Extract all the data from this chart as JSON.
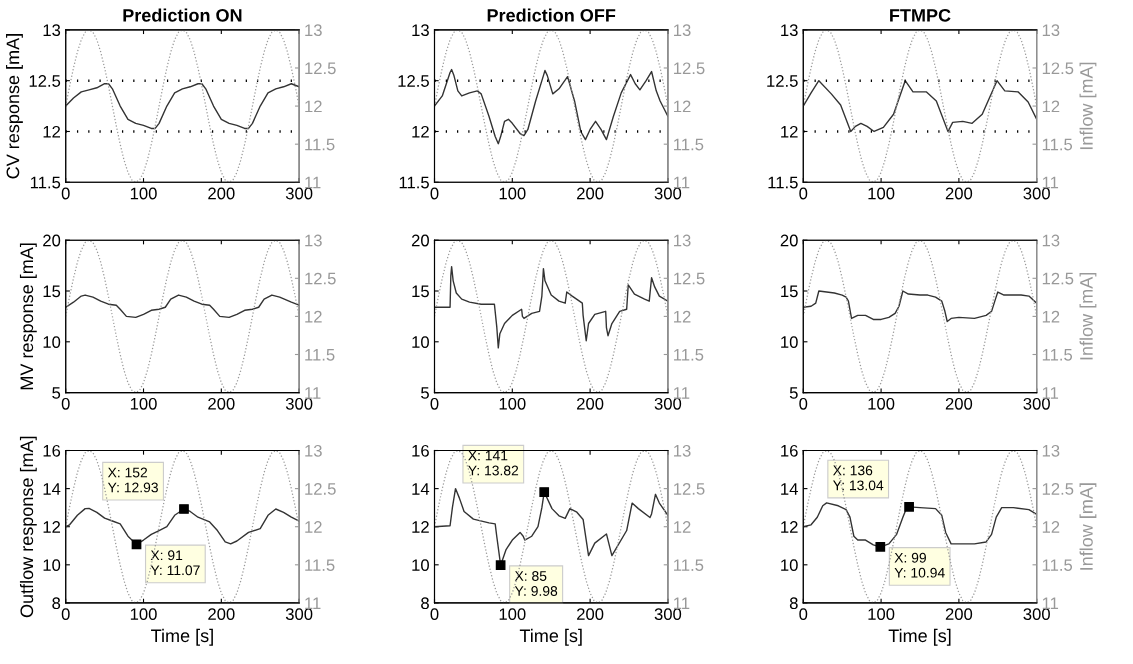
{
  "chart_data": [
    {
      "type": "line",
      "title": "Prediction ON",
      "ylabel": "CV response [mA]",
      "xlim": [
        0,
        300
      ],
      "xticks": [
        0,
        100,
        200,
        300
      ],
      "ylim": [
        11.5,
        13
      ],
      "yticks": [
        11.5,
        12,
        12.5,
        13
      ],
      "y2lim": [
        11,
        13
      ],
      "y2ticks": [
        11,
        11.5,
        12,
        12.5,
        13
      ],
      "grid": false,
      "legend": false,
      "x": [
        0,
        5,
        10,
        15,
        20,
        25,
        30,
        35,
        40,
        45,
        50,
        55,
        60,
        65,
        70,
        75,
        80,
        85,
        90,
        95,
        100,
        105,
        110,
        115,
        120,
        125,
        130,
        135,
        140,
        145,
        150,
        155,
        160,
        165,
        170,
        175,
        180,
        185,
        190,
        195,
        200,
        205,
        210,
        215,
        220,
        225,
        230,
        235,
        240,
        245,
        250,
        255,
        260,
        265,
        270,
        275,
        280,
        285,
        290,
        295,
        300
      ],
      "ref_lines": [
        {
          "axis": "y",
          "value": 12,
          "color": "#000000",
          "line_style": "dotted"
        },
        {
          "axis": "y",
          "value": 12.5,
          "color": "#000000",
          "line_style": "dotted"
        }
      ],
      "series": [
        {
          "color": "#999999",
          "axis": "y2",
          "line_style": "dotted",
          "values": [
            12,
            12.26,
            12.5,
            12.71,
            12.87,
            12.97,
            13,
            12.97,
            12.87,
            12.71,
            12.5,
            12.26,
            12,
            11.74,
            11.5,
            11.29,
            11.13,
            11.03,
            11,
            11.03,
            11.13,
            11.29,
            11.5,
            11.74,
            12,
            12.26,
            12.5,
            12.71,
            12.87,
            12.97,
            13,
            12.97,
            12.87,
            12.71,
            12.5,
            12.26,
            12,
            11.74,
            11.5,
            11.29,
            11.13,
            11.03,
            11,
            11.03,
            11.13,
            11.29,
            11.5,
            11.74,
            12,
            12.26,
            12.5,
            12.71,
            12.87,
            12.97,
            13,
            12.97,
            12.87,
            12.71,
            12.5,
            12.26,
            12
          ]
        },
        {
          "color": "#333333",
          "line_style": "solid",
          "x": [
            0,
            10,
            20,
            30,
            40,
            50,
            55,
            60,
            70,
            80,
            90,
            100,
            110,
            115,
            120,
            130,
            140,
            150,
            160,
            170,
            175,
            180,
            190,
            200,
            210,
            220,
            230,
            235,
            240,
            250,
            260,
            270,
            280,
            290,
            300
          ],
          "values": [
            12.25,
            12.33,
            12.39,
            12.41,
            12.43,
            12.47,
            12.47,
            12.42,
            12.25,
            12.12,
            12.08,
            12.06,
            12.03,
            12.03,
            12.08,
            12.25,
            12.38,
            12.42,
            12.44,
            12.47,
            12.47,
            12.42,
            12.25,
            12.12,
            12.08,
            12.06,
            12.03,
            12.03,
            12.08,
            12.25,
            12.38,
            12.42,
            12.44,
            12.47,
            12.44
          ]
        }
      ]
    },
    {
      "type": "line",
      "title": "Prediction OFF",
      "xlim": [
        0,
        300
      ],
      "xticks": [
        0,
        100,
        200,
        300
      ],
      "ylim": [
        11.5,
        13
      ],
      "yticks": [
        11.5,
        12,
        12.5,
        13
      ],
      "y2lim": [
        11,
        13
      ],
      "y2ticks": [
        11,
        11.5,
        12,
        12.5,
        13
      ],
      "grid": false,
      "legend": false,
      "x": [
        0,
        5,
        10,
        15,
        20,
        25,
        30,
        35,
        40,
        45,
        50,
        55,
        60,
        65,
        70,
        75,
        80,
        85,
        90,
        95,
        100,
        105,
        110,
        115,
        120,
        125,
        130,
        135,
        140,
        145,
        150,
        155,
        160,
        165,
        170,
        175,
        180,
        185,
        190,
        195,
        200,
        205,
        210,
        215,
        220,
        225,
        230,
        235,
        240,
        245,
        250,
        255,
        260,
        265,
        270,
        275,
        280,
        285,
        290,
        295,
        300
      ],
      "ref_lines": [
        {
          "axis": "y",
          "value": 12,
          "color": "#000000",
          "line_style": "dotted"
        },
        {
          "axis": "y",
          "value": 12.5,
          "color": "#000000",
          "line_style": "dotted"
        }
      ],
      "series": [
        {
          "color": "#999999",
          "axis": "y2",
          "line_style": "dotted",
          "values": [
            12,
            12.26,
            12.5,
            12.71,
            12.87,
            12.97,
            13,
            12.97,
            12.87,
            12.71,
            12.5,
            12.26,
            12,
            11.74,
            11.5,
            11.29,
            11.13,
            11.03,
            11,
            11.03,
            11.13,
            11.29,
            11.5,
            11.74,
            12,
            12.26,
            12.5,
            12.71,
            12.87,
            12.97,
            13,
            12.97,
            12.87,
            12.71,
            12.5,
            12.26,
            12,
            11.74,
            11.5,
            11.29,
            11.13,
            11.03,
            11,
            11.03,
            11.13,
            11.29,
            11.5,
            11.74,
            12,
            12.26,
            12.5,
            12.71,
            12.87,
            12.97,
            13,
            12.97,
            12.87,
            12.71,
            12.5,
            12.26,
            12
          ]
        },
        {
          "color": "#333333",
          "line_style": "solid",
          "x": [
            0,
            10,
            20,
            22,
            25,
            30,
            35,
            45,
            55,
            60,
            70,
            78,
            82,
            85,
            90,
            95,
            100,
            110,
            115,
            120,
            130,
            140,
            142,
            145,
            152,
            160,
            171,
            180,
            188,
            194,
            200,
            207,
            214,
            221,
            230,
            240,
            252,
            258,
            264,
            272,
            279,
            285,
            290,
            300
          ],
          "values": [
            12.25,
            12.35,
            12.58,
            12.61,
            12.55,
            12.4,
            12.35,
            12.38,
            12.4,
            12.37,
            12.15,
            11.95,
            11.88,
            11.95,
            12.1,
            12.12,
            12.08,
            11.98,
            11.96,
            12.02,
            12.3,
            12.55,
            12.6,
            12.55,
            12.37,
            12.42,
            12.54,
            12.3,
            12.0,
            11.92,
            12.02,
            12.1,
            12.02,
            11.92,
            12.15,
            12.38,
            12.56,
            12.47,
            12.41,
            12.5,
            12.59,
            12.4,
            12.3,
            12.15
          ]
        }
      ]
    },
    {
      "type": "line",
      "title": "FTMPC",
      "y2label": "Inflow [mA]",
      "xlim": [
        0,
        300
      ],
      "xticks": [
        0,
        100,
        200,
        300
      ],
      "ylim": [
        11.5,
        13
      ],
      "yticks": [
        11.5,
        12,
        12.5,
        13
      ],
      "y2lim": [
        11,
        13
      ],
      "y2ticks": [
        11,
        11.5,
        12,
        12.5,
        13
      ],
      "grid": false,
      "legend": false,
      "x": [
        0,
        5,
        10,
        15,
        20,
        25,
        30,
        35,
        40,
        45,
        50,
        55,
        60,
        65,
        70,
        75,
        80,
        85,
        90,
        95,
        100,
        105,
        110,
        115,
        120,
        125,
        130,
        135,
        140,
        145,
        150,
        155,
        160,
        165,
        170,
        175,
        180,
        185,
        190,
        195,
        200,
        205,
        210,
        215,
        220,
        225,
        230,
        235,
        240,
        245,
        250,
        255,
        260,
        265,
        270,
        275,
        280,
        285,
        290,
        295,
        300
      ],
      "ref_lines": [
        {
          "axis": "y",
          "value": 12,
          "color": "#000000",
          "line_style": "dotted"
        },
        {
          "axis": "y",
          "value": 12.5,
          "color": "#000000",
          "line_style": "dotted"
        }
      ],
      "series": [
        {
          "color": "#999999",
          "axis": "y2",
          "line_style": "dotted",
          "values": [
            12,
            12.26,
            12.5,
            12.71,
            12.87,
            12.97,
            13,
            12.97,
            12.87,
            12.71,
            12.5,
            12.26,
            12,
            11.74,
            11.5,
            11.29,
            11.13,
            11.03,
            11,
            11.03,
            11.13,
            11.29,
            11.5,
            11.74,
            12,
            12.26,
            12.5,
            12.71,
            12.87,
            12.97,
            13,
            12.97,
            12.87,
            12.71,
            12.5,
            12.26,
            12,
            11.74,
            11.5,
            11.29,
            11.13,
            11.03,
            11,
            11.03,
            11.13,
            11.29,
            11.5,
            11.74,
            12,
            12.26,
            12.5,
            12.71,
            12.87,
            12.97,
            13,
            12.97,
            12.87,
            12.71,
            12.5,
            12.26,
            12
          ]
        },
        {
          "color": "#333333",
          "line_style": "solid",
          "x": [
            0,
            10,
            20,
            36,
            48,
            61,
            67,
            74,
            82,
            91,
            103,
            116,
            131,
            141,
            158,
            171,
            186,
            192,
            205,
            217,
            230,
            249,
            259,
            276,
            289,
            300
          ],
          "values": [
            12.25,
            12.38,
            12.5,
            12.37,
            12.26,
            12.0,
            12.05,
            12.08,
            12.05,
            12.0,
            12.04,
            12.17,
            12.5,
            12.39,
            12.39,
            12.3,
            12.0,
            12.09,
            12.1,
            12.08,
            12.17,
            12.5,
            12.4,
            12.39,
            12.29,
            12.12
          ]
        }
      ]
    },
    {
      "type": "line",
      "ylabel": "MV response [mA]",
      "xlim": [
        0,
        300
      ],
      "xticks": [
        0,
        100,
        200,
        300
      ],
      "ylim": [
        5,
        20
      ],
      "yticks": [
        5,
        10,
        15,
        20
      ],
      "y2lim": [
        11,
        13
      ],
      "y2ticks": [
        11,
        11.5,
        12,
        12.5,
        13
      ],
      "grid": false,
      "legend": false,
      "x": [
        0,
        5,
        10,
        15,
        20,
        25,
        30,
        35,
        40,
        45,
        50,
        55,
        60,
        65,
        70,
        75,
        80,
        85,
        90,
        95,
        100,
        105,
        110,
        115,
        120,
        125,
        130,
        135,
        140,
        145,
        150,
        155,
        160,
        165,
        170,
        175,
        180,
        185,
        190,
        195,
        200,
        205,
        210,
        215,
        220,
        225,
        230,
        235,
        240,
        245,
        250,
        255,
        260,
        265,
        270,
        275,
        280,
        285,
        290,
        295,
        300
      ],
      "series": [
        {
          "color": "#999999",
          "axis": "y2",
          "line_style": "dotted",
          "values": [
            12,
            12.26,
            12.5,
            12.71,
            12.87,
            12.97,
            13,
            12.97,
            12.87,
            12.71,
            12.5,
            12.26,
            12,
            11.74,
            11.5,
            11.29,
            11.13,
            11.03,
            11,
            11.03,
            11.13,
            11.29,
            11.5,
            11.74,
            12,
            12.26,
            12.5,
            12.71,
            12.87,
            12.97,
            13,
            12.97,
            12.87,
            12.71,
            12.5,
            12.26,
            12,
            11.74,
            11.5,
            11.29,
            11.13,
            11.03,
            11,
            11.03,
            11.13,
            11.29,
            11.5,
            11.74,
            12,
            12.26,
            12.5,
            12.71,
            12.87,
            12.97,
            13,
            12.97,
            12.87,
            12.71,
            12.5,
            12.26,
            12
          ]
        },
        {
          "color": "#333333",
          "line_style": "solid",
          "x": [
            0,
            10,
            20,
            25,
            35,
            45,
            55,
            65,
            70,
            78,
            90,
            100,
            110,
            120,
            128,
            135,
            145,
            155,
            165,
            175,
            185,
            190,
            198,
            210,
            220,
            230,
            240,
            248,
            255,
            265,
            275,
            290,
            300
          ],
          "values": [
            13.4,
            13.9,
            14.5,
            14.6,
            14.4,
            14.0,
            13.7,
            13.6,
            13.2,
            12.5,
            12.4,
            12.7,
            13.1,
            13.2,
            13.4,
            14.2,
            14.6,
            14.4,
            14.0,
            13.7,
            13.6,
            13.2,
            12.5,
            12.4,
            12.7,
            13.1,
            13.2,
            13.4,
            14.2,
            14.6,
            14.4,
            13.9,
            13.6
          ]
        }
      ]
    },
    {
      "type": "line",
      "xlim": [
        0,
        300
      ],
      "xticks": [
        0,
        100,
        200,
        300
      ],
      "ylim": [
        5,
        20
      ],
      "yticks": [
        5,
        10,
        15,
        20
      ],
      "y2lim": [
        11,
        13
      ],
      "y2ticks": [
        11,
        11.5,
        12,
        12.5,
        13
      ],
      "grid": false,
      "legend": false,
      "x": [
        0,
        5,
        10,
        15,
        20,
        25,
        30,
        35,
        40,
        45,
        50,
        55,
        60,
        65,
        70,
        75,
        80,
        85,
        90,
        95,
        100,
        105,
        110,
        115,
        120,
        125,
        130,
        135,
        140,
        145,
        150,
        155,
        160,
        165,
        170,
        175,
        180,
        185,
        190,
        195,
        200,
        205,
        210,
        215,
        220,
        225,
        230,
        235,
        240,
        245,
        250,
        255,
        260,
        265,
        270,
        275,
        280,
        285,
        290,
        295,
        300
      ],
      "series": [
        {
          "color": "#999999",
          "axis": "y2",
          "line_style": "dotted",
          "values": [
            12,
            12.26,
            12.5,
            12.71,
            12.87,
            12.97,
            13,
            12.97,
            12.87,
            12.71,
            12.5,
            12.26,
            12,
            11.74,
            11.5,
            11.29,
            11.13,
            11.03,
            11,
            11.03,
            11.13,
            11.29,
            11.5,
            11.74,
            12,
            12.26,
            12.5,
            12.71,
            12.87,
            12.97,
            13,
            12.97,
            12.87,
            12.71,
            12.5,
            12.26,
            12,
            11.74,
            11.5,
            11.29,
            11.13,
            11.03,
            11,
            11.03,
            11.13,
            11.29,
            11.5,
            11.74,
            12,
            12.26,
            12.5,
            12.71,
            12.87,
            12.97,
            13,
            12.97,
            12.87,
            12.71,
            12.5,
            12.26,
            12
          ]
        },
        {
          "color": "#333333",
          "line_style": "solid",
          "x": [
            0,
            20,
            21,
            22,
            24,
            28,
            35,
            45,
            60,
            77,
            80,
            82,
            84,
            90,
            100,
            112,
            113,
            115,
            125,
            135,
            138,
            140,
            142,
            150,
            160,
            168,
            170,
            177,
            190,
            191,
            195,
            198,
            206,
            220,
            221,
            223,
            228,
            238,
            247,
            249,
            257,
            270,
            276,
            279,
            283,
            289,
            300
          ],
          "values": [
            13.4,
            13.4,
            16.5,
            17.4,
            16.0,
            14.8,
            14.2,
            13.9,
            13.7,
            13.7,
            11.5,
            9.4,
            10.8,
            11.8,
            12.6,
            13.2,
            12.5,
            12.3,
            12.8,
            13.0,
            14.5,
            17.2,
            16.0,
            14.6,
            14.0,
            13.8,
            14.9,
            14.5,
            13.8,
            12.6,
            10.1,
            11.8,
            12.7,
            13.0,
            11.4,
            10.6,
            11.8,
            13.0,
            13.2,
            15.6,
            14.7,
            14.2,
            14.0,
            16.3,
            15.4,
            14.5,
            14.0
          ]
        }
      ]
    },
    {
      "type": "line",
      "y2label": "Inflow [mA]",
      "xlim": [
        0,
        300
      ],
      "xticks": [
        0,
        100,
        200,
        300
      ],
      "ylim": [
        5,
        20
      ],
      "yticks": [
        5,
        10,
        15,
        20
      ],
      "y2lim": [
        11,
        13
      ],
      "y2ticks": [
        11,
        11.5,
        12,
        12.5,
        13
      ],
      "grid": false,
      "legend": false,
      "x": [
        0,
        5,
        10,
        15,
        20,
        25,
        30,
        35,
        40,
        45,
        50,
        55,
        60,
        65,
        70,
        75,
        80,
        85,
        90,
        95,
        100,
        105,
        110,
        115,
        120,
        125,
        130,
        135,
        140,
        145,
        150,
        155,
        160,
        165,
        170,
        175,
        180,
        185,
        190,
        195,
        200,
        205,
        210,
        215,
        220,
        225,
        230,
        235,
        240,
        245,
        250,
        255,
        260,
        265,
        270,
        275,
        280,
        285,
        290,
        295,
        300
      ],
      "series": [
        {
          "color": "#999999",
          "axis": "y2",
          "line_style": "dotted",
          "values": [
            12,
            12.26,
            12.5,
            12.71,
            12.87,
            12.97,
            13,
            12.97,
            12.87,
            12.71,
            12.5,
            12.26,
            12,
            11.74,
            11.5,
            11.29,
            11.13,
            11.03,
            11,
            11.03,
            11.13,
            11.29,
            11.5,
            11.74,
            12,
            12.26,
            12.5,
            12.71,
            12.87,
            12.97,
            13,
            12.97,
            12.87,
            12.71,
            12.5,
            12.26,
            12,
            11.74,
            11.5,
            11.29,
            11.13,
            11.03,
            11,
            11.03,
            11.13,
            11.29,
            11.5,
            11.74,
            12,
            12.26,
            12.5,
            12.71,
            12.87,
            12.97,
            13,
            12.97,
            12.87,
            12.71,
            12.5,
            12.26,
            12
          ]
        },
        {
          "color": "#333333",
          "line_style": "solid",
          "x": [
            0,
            10,
            16,
            20,
            30,
            40,
            50,
            55,
            58,
            62,
            70,
            80,
            90,
            100,
            110,
            118,
            123,
            128,
            135,
            150,
            160,
            170,
            178,
            182,
            185,
            190,
            200,
            220,
            235,
            242,
            247,
            250,
            258,
            280,
            290,
            300
          ],
          "values": [
            13.4,
            13.5,
            13.8,
            15.0,
            14.9,
            14.8,
            14.6,
            14.4,
            14.0,
            12.3,
            12.6,
            12.6,
            12.2,
            12.2,
            12.4,
            12.8,
            13.5,
            15.0,
            14.7,
            14.6,
            14.6,
            14.4,
            14.0,
            13.0,
            12.0,
            12.3,
            12.4,
            12.3,
            12.6,
            13.0,
            14.2,
            14.9,
            14.6,
            14.6,
            14.5,
            13.8
          ]
        }
      ]
    },
    {
      "type": "line",
      "ylabel": "Outflow response [mA]",
      "xlabel": "Time [s]",
      "xlim": [
        0,
        300
      ],
      "xticks": [
        0,
        100,
        200,
        300
      ],
      "ylim": [
        8,
        16
      ],
      "yticks": [
        8,
        10,
        12,
        14,
        16
      ],
      "y2lim": [
        11,
        13
      ],
      "y2ticks": [
        11,
        11.5,
        12,
        12.5,
        13
      ],
      "grid": false,
      "legend": false,
      "x": [
        0,
        5,
        10,
        15,
        20,
        25,
        30,
        35,
        40,
        45,
        50,
        55,
        60,
        65,
        70,
        75,
        80,
        85,
        90,
        95,
        100,
        105,
        110,
        115,
        120,
        125,
        130,
        135,
        140,
        145,
        150,
        155,
        160,
        165,
        170,
        175,
        180,
        185,
        190,
        195,
        200,
        205,
        210,
        215,
        220,
        225,
        230,
        235,
        240,
        245,
        250,
        255,
        260,
        265,
        270,
        275,
        280,
        285,
        290,
        295,
        300
      ],
      "annotations": [
        {
          "text": "X: 91\nY: 11.07",
          "x": 91,
          "y": 11.07
        },
        {
          "text": "X: 152\nY: 12.93",
          "x": 152,
          "y": 12.93
        }
      ],
      "series": [
        {
          "color": "#999999",
          "axis": "y2",
          "line_style": "dotted",
          "values": [
            12,
            12.26,
            12.5,
            12.71,
            12.87,
            12.97,
            13,
            12.97,
            12.87,
            12.71,
            12.5,
            12.26,
            12,
            11.74,
            11.5,
            11.29,
            11.13,
            11.03,
            11,
            11.03,
            11.13,
            11.29,
            11.5,
            11.74,
            12,
            12.26,
            12.5,
            12.71,
            12.87,
            12.97,
            13,
            12.97,
            12.87,
            12.71,
            12.5,
            12.26,
            12,
            11.74,
            11.5,
            11.29,
            11.13,
            11.03,
            11,
            11.03,
            11.13,
            11.29,
            11.5,
            11.74,
            12,
            12.26,
            12.5,
            12.71,
            12.87,
            12.97,
            13,
            12.97,
            12.87,
            12.71,
            12.5,
            12.26,
            12
          ]
        },
        {
          "color": "#333333",
          "line_style": "solid",
          "x": [
            0,
            5,
            15,
            25,
            30,
            40,
            50,
            60,
            70,
            80,
            91,
            100,
            110,
            120,
            130,
            140,
            152,
            160,
            170,
            185,
            195,
            205,
            212,
            220,
            235,
            250,
            260,
            270,
            280,
            290,
            300
          ],
          "values": [
            12.0,
            12.1,
            12.6,
            12.95,
            12.96,
            12.75,
            12.45,
            12.3,
            12.15,
            11.5,
            11.07,
            11.3,
            11.6,
            11.8,
            12.0,
            12.6,
            12.93,
            12.8,
            12.5,
            12.25,
            11.8,
            11.2,
            11.1,
            11.25,
            11.7,
            11.9,
            12.6,
            12.93,
            12.75,
            12.5,
            12.3
          ]
        }
      ]
    },
    {
      "type": "line",
      "xlabel": "Time [s]",
      "xlim": [
        0,
        300
      ],
      "xticks": [
        0,
        100,
        200,
        300
      ],
      "ylim": [
        8,
        16
      ],
      "yticks": [
        8,
        10,
        12,
        14,
        16
      ],
      "y2lim": [
        11,
        13
      ],
      "y2ticks": [
        11,
        11.5,
        12,
        12.5,
        13
      ],
      "grid": false,
      "legend": false,
      "x": [
        0,
        5,
        10,
        15,
        20,
        25,
        30,
        35,
        40,
        45,
        50,
        55,
        60,
        65,
        70,
        75,
        80,
        85,
        90,
        95,
        100,
        105,
        110,
        115,
        120,
        125,
        130,
        135,
        140,
        145,
        150,
        155,
        160,
        165,
        170,
        175,
        180,
        185,
        190,
        195,
        200,
        205,
        210,
        215,
        220,
        225,
        230,
        235,
        240,
        245,
        250,
        255,
        260,
        265,
        270,
        275,
        280,
        285,
        290,
        295,
        300
      ],
      "annotations": [
        {
          "text": "X: 85\nY: 9.98",
          "x": 85,
          "y": 9.98
        },
        {
          "text": "X: 141\nY: 13.82",
          "x": 141,
          "y": 13.82
        }
      ],
      "series": [
        {
          "color": "#999999",
          "axis": "y2",
          "line_style": "dotted",
          "values": [
            12,
            12.26,
            12.5,
            12.71,
            12.87,
            12.97,
            13,
            12.97,
            12.87,
            12.71,
            12.5,
            12.26,
            12,
            11.74,
            11.5,
            11.29,
            11.13,
            11.03,
            11,
            11.03,
            11.13,
            11.29,
            11.5,
            11.74,
            12,
            12.26,
            12.5,
            12.71,
            12.87,
            12.97,
            13,
            12.97,
            12.87,
            12.71,
            12.5,
            12.26,
            12,
            11.74,
            11.5,
            11.29,
            11.13,
            11.03,
            11,
            11.03,
            11.13,
            11.29,
            11.5,
            11.74,
            12,
            12.26,
            12.5,
            12.71,
            12.87,
            12.97,
            13,
            12.97,
            12.87,
            12.71,
            12.5,
            12.26,
            12
          ]
        },
        {
          "color": "#333333",
          "line_style": "solid",
          "x": [
            0,
            20,
            23,
            27,
            32,
            38,
            50,
            70,
            78,
            80,
            85,
            92,
            100,
            110,
            114,
            116,
            125,
            133,
            138,
            141,
            151,
            160,
            168,
            174,
            183,
            191,
            198,
            206,
            221,
            228,
            247,
            254,
            262,
            277,
            279,
            284,
            289,
            300
          ],
          "values": [
            12.0,
            12.05,
            13.0,
            14.0,
            13.5,
            12.8,
            12.4,
            12.2,
            12.15,
            11.5,
            9.98,
            10.8,
            11.3,
            11.7,
            11.5,
            11.3,
            11.5,
            12.0,
            13.0,
            13.82,
            12.95,
            12.57,
            12.44,
            12.95,
            12.76,
            12.38,
            10.48,
            11.14,
            11.62,
            10.48,
            11.8,
            13.24,
            12.95,
            12.48,
            12.67,
            13.7,
            13.24,
            12.6
          ]
        }
      ]
    },
    {
      "type": "line",
      "xlabel": "Time [s]",
      "y2label": "Inflow [mA]",
      "xlim": [
        0,
        300
      ],
      "xticks": [
        0,
        100,
        200,
        300
      ],
      "ylim": [
        8,
        16
      ],
      "yticks": [
        8,
        10,
        12,
        14,
        16
      ],
      "y2lim": [
        11,
        13
      ],
      "y2ticks": [
        11,
        11.5,
        12,
        12.5,
        13
      ],
      "grid": false,
      "legend": false,
      "x": [
        0,
        5,
        10,
        15,
        20,
        25,
        30,
        35,
        40,
        45,
        50,
        55,
        60,
        65,
        70,
        75,
        80,
        85,
        90,
        95,
        100,
        105,
        110,
        115,
        120,
        125,
        130,
        135,
        140,
        145,
        150,
        155,
        160,
        165,
        170,
        175,
        180,
        185,
        190,
        195,
        200,
        205,
        210,
        215,
        220,
        225,
        230,
        235,
        240,
        245,
        250,
        255,
        260,
        265,
        270,
        275,
        280,
        285,
        290,
        295,
        300
      ],
      "annotations": [
        {
          "text": "X: 136\nY: 13.04",
          "x": 136,
          "y": 13.04
        },
        {
          "text": "X: 99\nY: 10.94",
          "x": 99,
          "y": 10.94
        }
      ],
      "series": [
        {
          "color": "#999999",
          "axis": "y2",
          "line_style": "dotted",
          "values": [
            12,
            12.26,
            12.5,
            12.71,
            12.87,
            12.97,
            13,
            12.97,
            12.87,
            12.71,
            12.5,
            12.26,
            12,
            11.74,
            11.5,
            11.29,
            11.13,
            11.03,
            11,
            11.03,
            11.13,
            11.29,
            11.5,
            11.74,
            12,
            12.26,
            12.5,
            12.71,
            12.87,
            12.97,
            13,
            12.97,
            12.87,
            12.71,
            12.5,
            12.26,
            12,
            11.74,
            11.5,
            11.29,
            11.13,
            11.03,
            11,
            11.03,
            11.13,
            11.29,
            11.5,
            11.74,
            12,
            12.26,
            12.5,
            12.71,
            12.87,
            12.97,
            13,
            12.97,
            12.87,
            12.71,
            12.5,
            12.26,
            12
          ]
        },
        {
          "color": "#333333",
          "line_style": "solid",
          "x": [
            0,
            10,
            18,
            25,
            30,
            45,
            55,
            60,
            65,
            70,
            80,
            90,
            99,
            110,
            120,
            128,
            133,
            136,
            150,
            170,
            178,
            183,
            190,
            200,
            220,
            235,
            242,
            248,
            255,
            270,
            290,
            300
          ],
          "values": [
            12.0,
            12.1,
            12.5,
            13.1,
            13.25,
            13.1,
            12.9,
            12.5,
            11.5,
            11.3,
            11.3,
            11.05,
            10.94,
            11.1,
            11.6,
            12.5,
            13.0,
            13.04,
            13.0,
            12.95,
            12.6,
            11.7,
            11.1,
            11.1,
            11.1,
            11.2,
            11.6,
            12.5,
            13.0,
            13.0,
            12.9,
            12.65
          ]
        }
      ]
    }
  ]
}
